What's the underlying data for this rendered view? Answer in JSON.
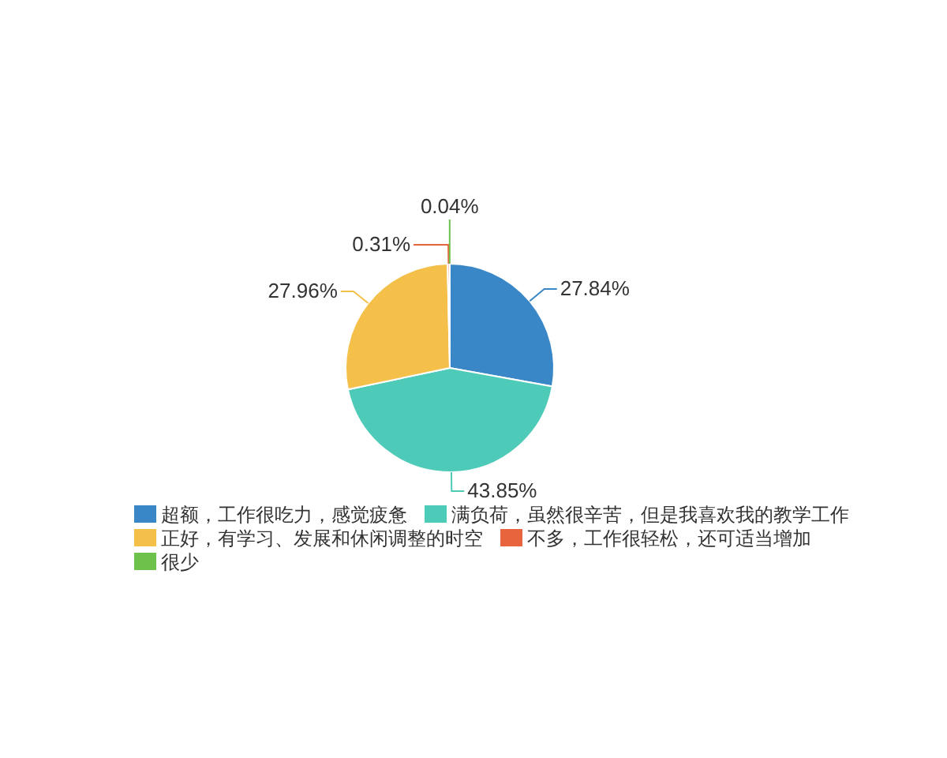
{
  "chart_data": {
    "type": "pie",
    "categories": [
      "超额，工作很吃力，感觉疲惫",
      "满负荷，虽然很辛苦，但是我喜欢我的教学工作",
      "正好，有学习、发展和休闲调整的时空",
      "不多，工作很轻松，还可适当增加",
      "很少"
    ],
    "values": [
      27.84,
      43.85,
      27.96,
      0.31,
      0.04
    ],
    "value_labels": [
      "27.84%",
      "43.85%",
      "27.96%",
      "0.31%",
      "0.04%"
    ],
    "colors": [
      "#3a87c8",
      "#4ecbb8",
      "#f5c04a",
      "#e8643c",
      "#6cc24a"
    ],
    "legend": "bottom"
  }
}
